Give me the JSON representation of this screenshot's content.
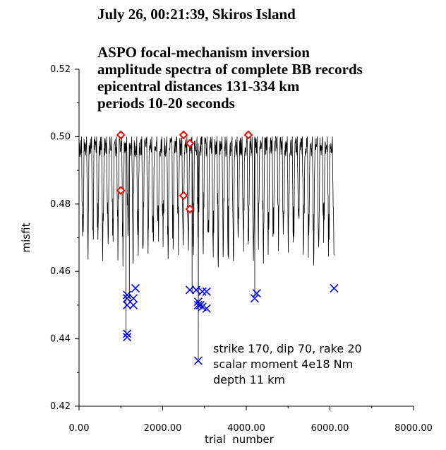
{
  "chart_data": {
    "type": "scatter",
    "title": "July 26, 00:21:39, Skiros Island",
    "subtitle_lines": [
      "ASPO focal-mechanism inversion",
      "amplitude spectra of complete BB records",
      "epicentral distances 131-334 km",
      "periods 10-20 seconds"
    ],
    "xlabel": "trial  number",
    "ylabel": "misfit",
    "xlim": [
      0,
      8000
    ],
    "ylim": [
      0.42,
      0.52
    ],
    "x_ticks": [
      0,
      2000,
      4000,
      6000,
      8000
    ],
    "x_tick_labels": [
      "0.00",
      "2000.00",
      "4000.00",
      "6000.00",
      "8000.00"
    ],
    "y_ticks": [
      0.42,
      0.44,
      0.46,
      0.48,
      0.5,
      0.52
    ],
    "y_tick_labels": [
      "0.42",
      "0.44",
      "0.46",
      "0.48",
      "0.50",
      "0.52"
    ],
    "grid": false,
    "annotations": [
      "strike 170, dip 70, rake 20",
      "scalar moment 4e18 Nm",
      "depth 11 km"
    ],
    "series": [
      {
        "marker": "line",
        "color": "#000000",
        "x_range": [
          0,
          6100
        ],
        "y_max": 0.5,
        "y_typical_min": 0.463,
        "deep_spikes": [
          {
            "x": 1120,
            "y": 0.441
          },
          {
            "x": 1200,
            "y": 0.452
          },
          {
            "x": 2850,
            "y": 0.434
          },
          {
            "x": 2700,
            "y": 0.454
          },
          {
            "x": 4200,
            "y": 0.453
          }
        ]
      },
      {
        "marker": "diamond",
        "color": "#ff0000",
        "points": [
          {
            "x": 1000,
            "y": 0.5005
          },
          {
            "x": 1000,
            "y": 0.484
          },
          {
            "x": 2500,
            "y": 0.5005
          },
          {
            "x": 2650,
            "y": 0.498
          },
          {
            "x": 2500,
            "y": 0.4825
          },
          {
            "x": 2650,
            "y": 0.4785
          },
          {
            "x": 4050,
            "y": 0.5005
          }
        ]
      },
      {
        "marker": "x",
        "color": "#0000ff",
        "points": [
          {
            "x": 1150,
            "y": 0.4405
          },
          {
            "x": 1150,
            "y": 0.4415
          },
          {
            "x": 1150,
            "y": 0.45
          },
          {
            "x": 1150,
            "y": 0.452
          },
          {
            "x": 1150,
            "y": 0.453
          },
          {
            "x": 1300,
            "y": 0.45
          },
          {
            "x": 1300,
            "y": 0.452
          },
          {
            "x": 1350,
            "y": 0.455
          },
          {
            "x": 2650,
            "y": 0.4545
          },
          {
            "x": 2800,
            "y": 0.4545
          },
          {
            "x": 2850,
            "y": 0.45
          },
          {
            "x": 2850,
            "y": 0.451
          },
          {
            "x": 2900,
            "y": 0.45
          },
          {
            "x": 2950,
            "y": 0.4495
          },
          {
            "x": 2950,
            "y": 0.454
          },
          {
            "x": 3050,
            "y": 0.449
          },
          {
            "x": 3050,
            "y": 0.454
          },
          {
            "x": 2850,
            "y": 0.4335
          },
          {
            "x": 4200,
            "y": 0.452
          },
          {
            "x": 4250,
            "y": 0.4535
          },
          {
            "x": 6100,
            "y": 0.455
          }
        ]
      }
    ]
  }
}
